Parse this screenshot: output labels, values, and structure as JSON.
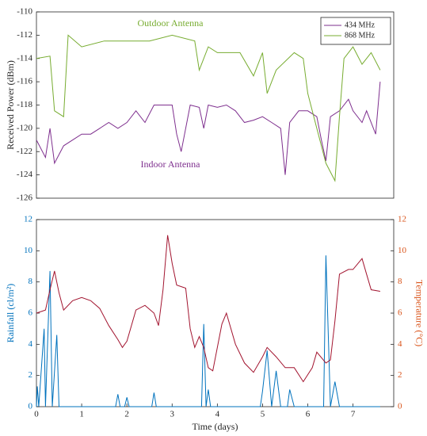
{
  "chart_data": [
    {
      "type": "line",
      "ylabel": "Received Power (dBm)",
      "xlim": [
        0,
        7.9
      ],
      "ylim": [
        -126,
        -110
      ],
      "yticks": [
        -126,
        -124,
        -122,
        -120,
        -118,
        -116,
        -114,
        -112,
        -110
      ],
      "annotations": [
        "Outdoor Antenna",
        "Indoor Antenna"
      ],
      "legend": "upper right",
      "series": [
        {
          "name": "434 MHz",
          "color": "#7e2f8e",
          "x": [
            0,
            0.2,
            0.3,
            0.4,
            0.6,
            0.8,
            1.0,
            1.2,
            1.4,
            1.6,
            1.8,
            2.0,
            2.2,
            2.4,
            2.6,
            2.8,
            3.0,
            3.1,
            3.2,
            3.4,
            3.6,
            3.7,
            3.8,
            4.0,
            4.2,
            4.4,
            4.6,
            4.8,
            5.0,
            5.2,
            5.4,
            5.5,
            5.6,
            5.8,
            6.0,
            6.2,
            6.3,
            6.4,
            6.5,
            6.7,
            6.9,
            7.0,
            7.2,
            7.3,
            7.5,
            7.6
          ],
          "values": [
            -121,
            -122.5,
            -120,
            -123,
            -121.5,
            -121,
            -120.5,
            -120.5,
            -120,
            -119.5,
            -120,
            -119.5,
            -118.5,
            -119.5,
            -118,
            -118,
            -118,
            -120.5,
            -122,
            -118,
            -118.2,
            -120,
            -118,
            -118.2,
            -118,
            -118.5,
            -119.5,
            -119.3,
            -119,
            -119.5,
            -120,
            -124,
            -119.5,
            -118.5,
            -118.5,
            -119,
            -121,
            -122.8,
            -119,
            -118.5,
            -117.5,
            -118.5,
            -119.5,
            -118.5,
            -120.5,
            -116
          ]
        },
        {
          "name": "868 MHz",
          "color": "#77ac30",
          "x": [
            0,
            0.3,
            0.4,
            0.6,
            0.7,
            1.0,
            1.5,
            2.0,
            2.5,
            3.0,
            3.5,
            3.6,
            3.8,
            4.0,
            4.5,
            4.8,
            5.0,
            5.1,
            5.3,
            5.7,
            5.9,
            6.0,
            6.2,
            6.4,
            6.6,
            6.7,
            6.8,
            7.0,
            7.2,
            7.4,
            7.6
          ],
          "values": [
            -114,
            -113.8,
            -118.5,
            -119,
            -112,
            -113,
            -112.5,
            -112.5,
            -112.5,
            -112,
            -112.5,
            -115,
            -113,
            -113.5,
            -113.5,
            -115.5,
            -113.5,
            -117,
            -115,
            -113.5,
            -114,
            -117,
            -120,
            -123,
            -124.5,
            -119,
            -114,
            -113,
            -114.5,
            -113.5,
            -115
          ]
        }
      ]
    },
    {
      "type": "line",
      "xlabel": "Time (days)",
      "ylabel": "Rainfall (cl/m²)",
      "y2label": "Temperature (°C)",
      "xlim": [
        0,
        7.9
      ],
      "xticks": [
        0,
        1,
        2,
        3,
        4,
        5,
        6,
        7
      ],
      "ylim": [
        0,
        12
      ],
      "yticks": [
        0,
        2,
        4,
        6,
        8,
        10,
        12
      ],
      "y2lim": [
        0,
        12
      ],
      "y2ticks": [
        0,
        2,
        4,
        6,
        8,
        10,
        12
      ],
      "series": [
        {
          "name": "Rainfall",
          "color": "#0072bd",
          "x": [
            0,
            0.02,
            0.05,
            0.17,
            0.2,
            0.3,
            0.35,
            0.45,
            0.5,
            1.75,
            1.8,
            1.85,
            1.95,
            2.0,
            2.05,
            2.55,
            2.6,
            2.65,
            3.65,
            3.7,
            3.75,
            3.8,
            3.85,
            4.95,
            5.0,
            5.1,
            5.2,
            5.3,
            5.4,
            5.55,
            5.6,
            5.7,
            6.35,
            6.4,
            6.5,
            6.6,
            6.7,
            7.6
          ],
          "values": [
            0,
            1.3,
            0,
            5,
            0,
            8.7,
            0,
            4.6,
            0,
            0,
            0.8,
            0,
            0,
            0.6,
            0,
            0,
            0.9,
            0,
            0,
            5.3,
            0,
            1.1,
            0,
            0,
            1,
            3.6,
            0,
            2.3,
            0,
            0,
            1.1,
            0,
            0,
            9.7,
            0,
            1.6,
            0,
            0
          ]
        },
        {
          "name": "Temperature",
          "color": "#a2142f",
          "axis": "y2",
          "x": [
            0,
            0.2,
            0.3,
            0.4,
            0.5,
            0.6,
            0.8,
            1.0,
            1.2,
            1.4,
            1.6,
            1.8,
            1.9,
            2.0,
            2.2,
            2.4,
            2.6,
            2.7,
            2.8,
            2.9,
            3.0,
            3.1,
            3.3,
            3.4,
            3.5,
            3.6,
            3.7,
            3.8,
            3.9,
            4.1,
            4.2,
            4.4,
            4.6,
            4.8,
            5.0,
            5.1,
            5.3,
            5.5,
            5.7,
            5.9,
            6.1,
            6.2,
            6.4,
            6.5,
            6.6,
            6.7,
            6.9,
            7.0,
            7.2,
            7.3,
            7.4,
            7.6
          ],
          "values": [
            6.0,
            6.2,
            7.5,
            8.7,
            7.3,
            6.2,
            6.8,
            7.0,
            6.8,
            6.3,
            5.2,
            4.3,
            3.8,
            4.2,
            6.2,
            6.5,
            6.0,
            5.2,
            7.5,
            11.0,
            9.2,
            7.8,
            7.6,
            5.0,
            3.8,
            4.5,
            3.8,
            2.5,
            2.3,
            5.3,
            6.0,
            4.0,
            2.8,
            2.2,
            3.2,
            3.8,
            3.2,
            2.5,
            2.5,
            1.6,
            2.5,
            3.5,
            2.8,
            3.0,
            5.5,
            8.5,
            8.8,
            8.8,
            9.5,
            8.5,
            7.5,
            7.4
          ]
        }
      ]
    }
  ]
}
